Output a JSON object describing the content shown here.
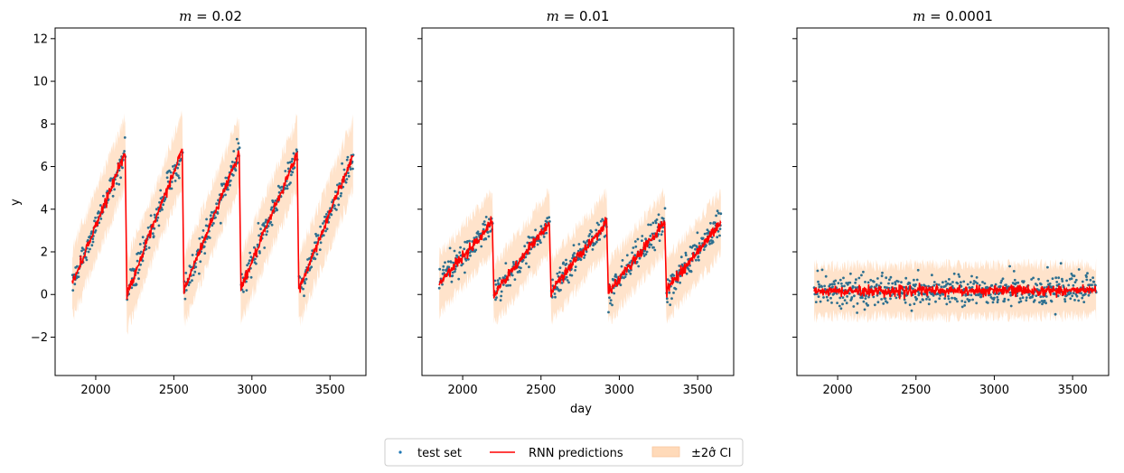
{
  "chart_data": {
    "type": "scatter",
    "shared_y": true,
    "ylim": [
      -3.8,
      12.5
    ],
    "xlim": [
      1740,
      3730
    ],
    "ylabel": "y",
    "xlabel": "day",
    "yticks": [
      -2,
      0,
      2,
      4,
      6,
      8,
      10,
      12
    ],
    "xticks": [
      2000,
      2500,
      3000,
      3500
    ],
    "x_range": [
      1850,
      3650
    ],
    "legend": {
      "placement": "bottom-center",
      "entries": [
        {
          "label": "test set",
          "kind": "scatter",
          "color": "#1f77b4"
        },
        {
          "label": "RNN predictions",
          "kind": "line",
          "color": "#ff0000"
        },
        {
          "label": "±2σ̂ CI",
          "kind": "band",
          "color": "#ffdab9"
        }
      ]
    },
    "panels": [
      {
        "title": "m = 0.02",
        "title_mvar": "m",
        "title_val": " = 0.02",
        "cycles": [
          {
            "start": 1850,
            "end": 2190,
            "y0": 0.5,
            "y1": 6.7
          },
          {
            "start": 2200,
            "end": 2555,
            "y0": 0.0,
            "y1": 6.8
          },
          {
            "start": 2565,
            "end": 2920,
            "y0": 0.2,
            "y1": 6.7
          },
          {
            "start": 2930,
            "end": 3290,
            "y0": 0.3,
            "y1": 6.6
          },
          {
            "start": 3300,
            "end": 3650,
            "y0": 0.2,
            "y1": 6.6
          }
        ],
        "noise": 0.45,
        "ci_halfwidth": 1.6
      },
      {
        "title": "m = 0.01",
        "title_mvar": "m",
        "title_val": " = 0.01",
        "cycles": [
          {
            "start": 1850,
            "end": 2190,
            "y0": 0.5,
            "y1": 3.4
          },
          {
            "start": 2200,
            "end": 2555,
            "y0": 0.0,
            "y1": 3.4
          },
          {
            "start": 2565,
            "end": 2920,
            "y0": 0.2,
            "y1": 3.4
          },
          {
            "start": 2930,
            "end": 3290,
            "y0": 0.1,
            "y1": 3.4
          },
          {
            "start": 3300,
            "end": 3650,
            "y0": 0.2,
            "y1": 3.4
          }
        ],
        "noise": 0.5,
        "ci_halfwidth": 1.4
      },
      {
        "title": "m = 0.0001",
        "title_mvar": "m",
        "title_val": " = 0.0001",
        "cycles": [
          {
            "start": 1850,
            "end": 3650,
            "y0": 0.15,
            "y1": 0.2
          }
        ],
        "noise": 0.5,
        "ci_halfwidth": 1.2
      }
    ]
  }
}
